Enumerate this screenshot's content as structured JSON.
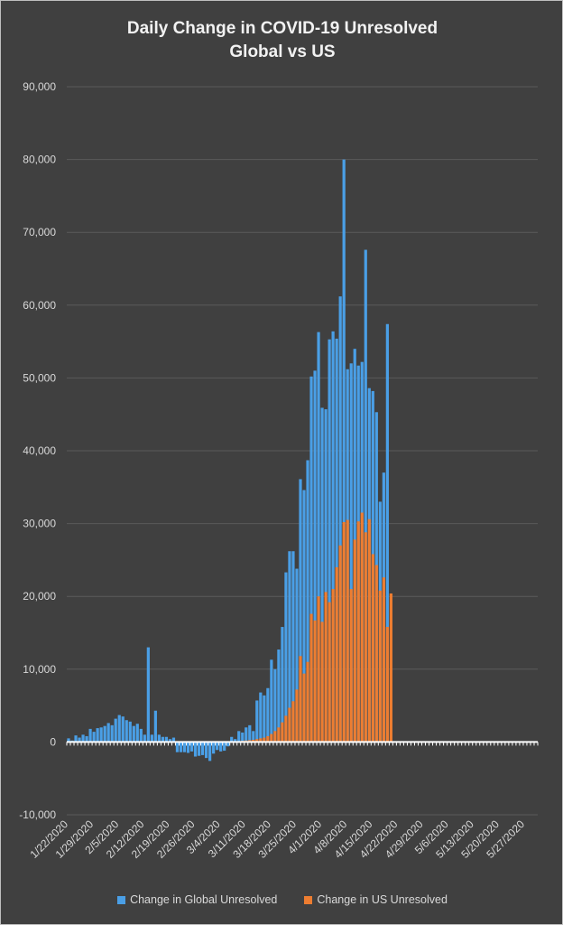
{
  "chart_data": {
    "type": "bar",
    "title": "Daily Change in COVID-19 Unresolved",
    "subtitle": "Global vs US",
    "xlabel": "",
    "ylabel": "",
    "ylim": [
      -10000,
      90000
    ],
    "y_ticks": [
      -10000,
      0,
      10000,
      20000,
      30000,
      40000,
      50000,
      60000,
      70000,
      80000,
      90000
    ],
    "y_tick_labels": [
      "-10,000",
      "0",
      "10,000",
      "20,000",
      "30,000",
      "40,000",
      "50,000",
      "60,000",
      "70,000",
      "80,000",
      "90,000"
    ],
    "x_tick_labels": [
      "1/22/2020",
      "1/29/2020",
      "2/5/2020",
      "2/12/2020",
      "2/19/2020",
      "2/26/2020",
      "3/4/2020",
      "3/11/2020",
      "3/18/2020",
      "3/25/2020",
      "4/1/2020",
      "4/8/2020",
      "4/15/2020",
      "4/22/2020",
      "4/29/2020",
      "5/6/2020",
      "5/13/2020",
      "5/20/2020",
      "5/27/2020"
    ],
    "day_count": 130,
    "grid": true,
    "legend_position": "bottom",
    "series": [
      {
        "name": "Change in Global Unresolved",
        "color": "#4a9fe6",
        "values": [
          500,
          200,
          900,
          600,
          1000,
          800,
          1800,
          1400,
          1900,
          2000,
          2200,
          2600,
          2300,
          3200,
          3700,
          3500,
          3000,
          2800,
          2200,
          2500,
          1800,
          1000,
          13000,
          1000,
          4300,
          1000,
          700,
          700,
          400,
          600,
          -1400,
          -1400,
          -1400,
          -1500,
          -1300,
          -2000,
          -1900,
          -1800,
          -2200,
          -2600,
          -1600,
          -1100,
          -1300,
          -1200,
          -600,
          700,
          400,
          1500,
          1300,
          2000,
          2300,
          1500,
          5700,
          6800,
          6400,
          7400,
          11300,
          10000,
          12700,
          15800,
          23300,
          26200,
          26200,
          23800,
          36100,
          34600,
          38700,
          50200,
          51000,
          56300,
          45900,
          45700,
          55300,
          56400,
          55400,
          61200,
          80000,
          51200,
          52000,
          54000,
          51700,
          52200,
          67600,
          48600,
          48200,
          45300,
          33000,
          37000,
          57400,
          0,
          0,
          0,
          0,
          0,
          0,
          0,
          0,
          0,
          0,
          0,
          0,
          0,
          0,
          0,
          0,
          0,
          0,
          0,
          0,
          0,
          0,
          0,
          0,
          0,
          0,
          0,
          0,
          0,
          0,
          0,
          0,
          0,
          0,
          0,
          0,
          0,
          0,
          0,
          0,
          0,
          0
        ]
      },
      {
        "name": "Change in US Unresolved",
        "color": "#ed7d31",
        "values": [
          0,
          0,
          0,
          0,
          0,
          0,
          0,
          0,
          0,
          0,
          0,
          0,
          0,
          0,
          0,
          0,
          0,
          0,
          0,
          0,
          0,
          0,
          0,
          0,
          0,
          0,
          0,
          0,
          0,
          0,
          0,
          0,
          0,
          0,
          0,
          0,
          0,
          0,
          0,
          0,
          0,
          0,
          0,
          0,
          50,
          50,
          100,
          100,
          150,
          200,
          250,
          300,
          400,
          500,
          600,
          800,
          1100,
          1500,
          2000,
          2700,
          3600,
          4700,
          5600,
          7200,
          11800,
          9400,
          11000,
          17600,
          16700,
          20000,
          16500,
          20600,
          19200,
          21000,
          24000,
          27000,
          30200,
          30500,
          21000,
          27800,
          30300,
          31500,
          28800,
          30600,
          25800,
          24300,
          20800,
          22600,
          15800,
          20400,
          0,
          0,
          0,
          0,
          0,
          0,
          0,
          0,
          0,
          0,
          0,
          0,
          0,
          0,
          0,
          0,
          0,
          0,
          0,
          0,
          0,
          0,
          0,
          0,
          0,
          0,
          0,
          0,
          0,
          0,
          0,
          0,
          0,
          0,
          0,
          0,
          0,
          0,
          0,
          0
        ]
      }
    ]
  }
}
